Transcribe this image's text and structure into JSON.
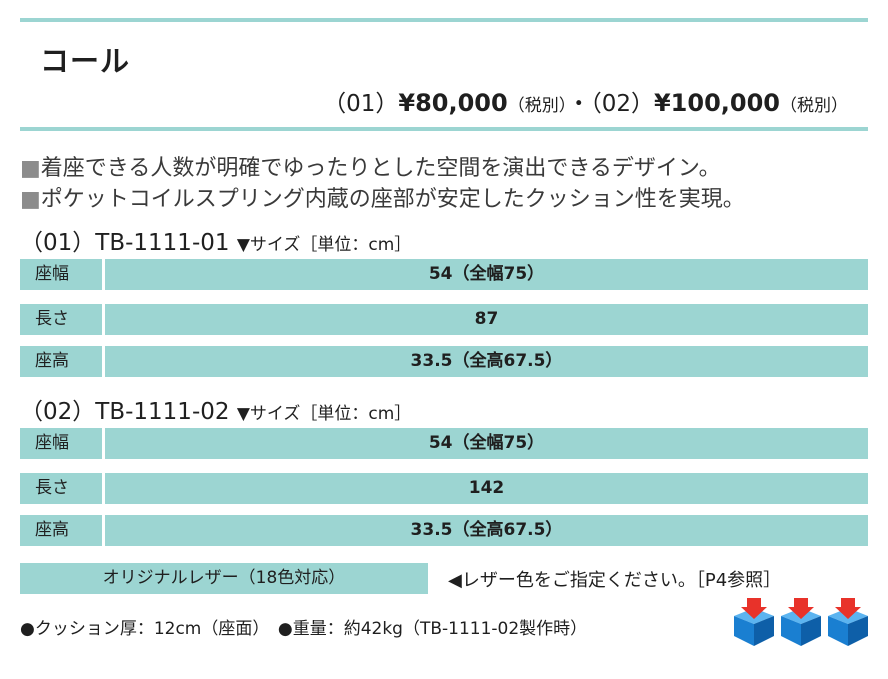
{
  "product_name": "コール",
  "price": {
    "open1": "（01）",
    "price1": "¥80,000",
    "tax1": "（税別）",
    "sep": "・",
    "open2": "（02）",
    "price2": "¥100,000",
    "tax2": "（税別）"
  },
  "features": [
    {
      "bullet": "■",
      "text": "着座できる人数が明確でゆったりとした空間を演出できるデザイン。"
    },
    {
      "bullet": "■",
      "text": "ポケットコイルスプリング内蔵の座部が安定したクッション性を実現。"
    }
  ],
  "models": [
    {
      "code_prefix": "（01）",
      "code": "TB-1111-01",
      "size_label": "▼サイズ［単位：cm］",
      "rows": [
        {
          "label": "座幅",
          "value": "54（全幅75）"
        },
        {
          "label": "長さ",
          "value": "87"
        },
        {
          "label": "座高",
          "value": "33.5（全高67.5）"
        }
      ]
    },
    {
      "code_prefix": "（02）",
      "code": "TB-1111-02",
      "size_label": "▼サイズ［単位：cm］",
      "rows": [
        {
          "label": "座幅",
          "value": "54（全幅75）"
        },
        {
          "label": "長さ",
          "value": "142"
        },
        {
          "label": "座高",
          "value": "33.5（全高67.5）"
        }
      ]
    }
  ],
  "leather": {
    "label": "オリジナルレザー（18色対応）",
    "note": "◀レザー色をご指定ください。［P4参照］"
  },
  "specs": "●クッション厚：12cm（座面）　●重量：約42kg（TB-1111-02製作時）",
  "colors": {
    "accent": "#9cd5d2",
    "cube_blue": "#1a7fd1",
    "arrow_red": "#e8322a"
  },
  "icons": [
    "cube-arrow-icon",
    "cube-arrow-icon",
    "cube-arrow-icon"
  ]
}
